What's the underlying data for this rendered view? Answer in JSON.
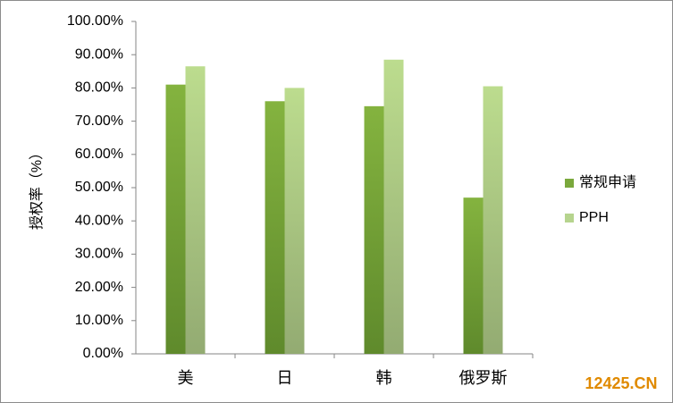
{
  "chart_data": {
    "type": "bar",
    "y_label": "授权率（%）",
    "categories": [
      "美",
      "日",
      "韩",
      "俄罗斯"
    ],
    "series": [
      {
        "name": "常规申请",
        "color": "#7aa83c",
        "values": [
          81,
          76,
          74.5,
          47
        ]
      },
      {
        "name": "PPH",
        "color": "#b6d48e",
        "values": [
          86.5,
          80,
          88.5,
          80.5
        ]
      }
    ],
    "ylim": [
      0,
      100
    ],
    "yticks": [
      {
        "value": 0,
        "label": "0.00%"
      },
      {
        "value": 10,
        "label": "10.00%"
      },
      {
        "value": 20,
        "label": "20.00%"
      },
      {
        "value": 30,
        "label": "30.00%"
      },
      {
        "value": 40,
        "label": "40.00%"
      },
      {
        "value": 50,
        "label": "50.00%"
      },
      {
        "value": 60,
        "label": "60.00%"
      },
      {
        "value": 70,
        "label": "70.00%"
      },
      {
        "value": 80,
        "label": "80.00%"
      },
      {
        "value": 90,
        "label": "90.00%"
      },
      {
        "value": 100,
        "label": "100.00%"
      }
    ],
    "legend": "right",
    "watermark": "12425.CN"
  }
}
